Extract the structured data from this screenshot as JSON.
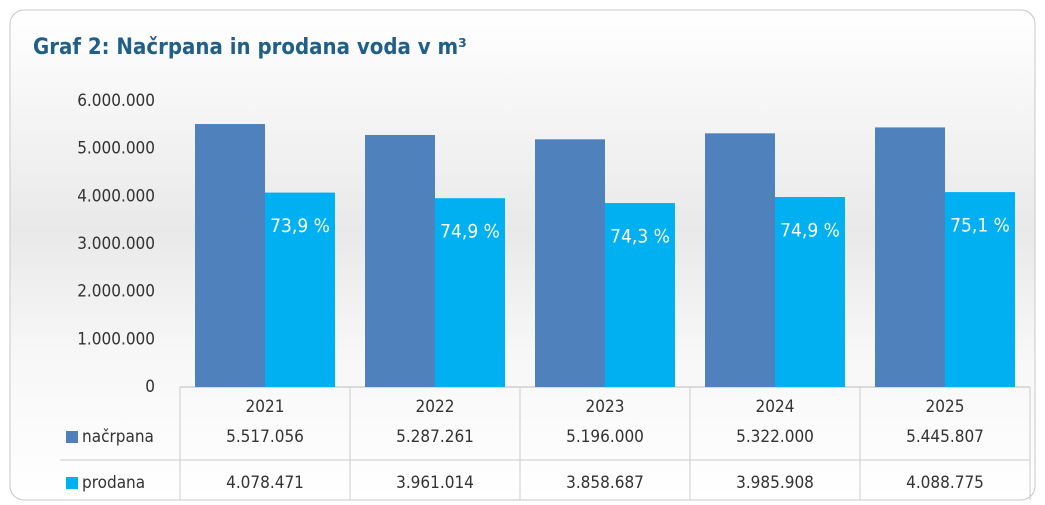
{
  "chart_data": {
    "type": "bar",
    "title": "Graf 2: Načrpana in prodana voda v m³",
    "categories": [
      "2021",
      "2022",
      "2023",
      "2024",
      "2025"
    ],
    "series": [
      {
        "name": "načrpana",
        "color": "#4f81bd",
        "values": [
          5517056,
          5287261,
          5196000,
          5322000,
          5445807
        ],
        "value_labels": [
          "5.517.056",
          "5.287.261",
          "5.196.000",
          "5.322.000",
          "5.445.807"
        ]
      },
      {
        "name": "prodana",
        "color": "#00b0f0",
        "values": [
          4078471,
          3961014,
          3858687,
          3985908,
          4088775
        ],
        "value_labels": [
          "4.078.471",
          "3.961.014",
          "3.858.687",
          "3.985.908",
          "4.088.775"
        ]
      }
    ],
    "annotations": [
      "73,9 %",
      "74,9 %",
      "74,3 %",
      "74,9 %",
      "75,1 %"
    ],
    "ylim": [
      0,
      6000000
    ],
    "yticks": [
      0,
      {
        "value": 1000000,
        "label": "1.000.000"
      },
      {
        "value": 2000000,
        "label": "2.000.000"
      },
      {
        "value": 3000000,
        "label": "3.000.000"
      },
      {
        "value": 4000000,
        "label": "4.000.000"
      },
      {
        "value": 5000000,
        "label": "5.000.000"
      },
      {
        "value": 6000000,
        "label": "6.000.000"
      }
    ],
    "grid": false,
    "data_table": true
  }
}
